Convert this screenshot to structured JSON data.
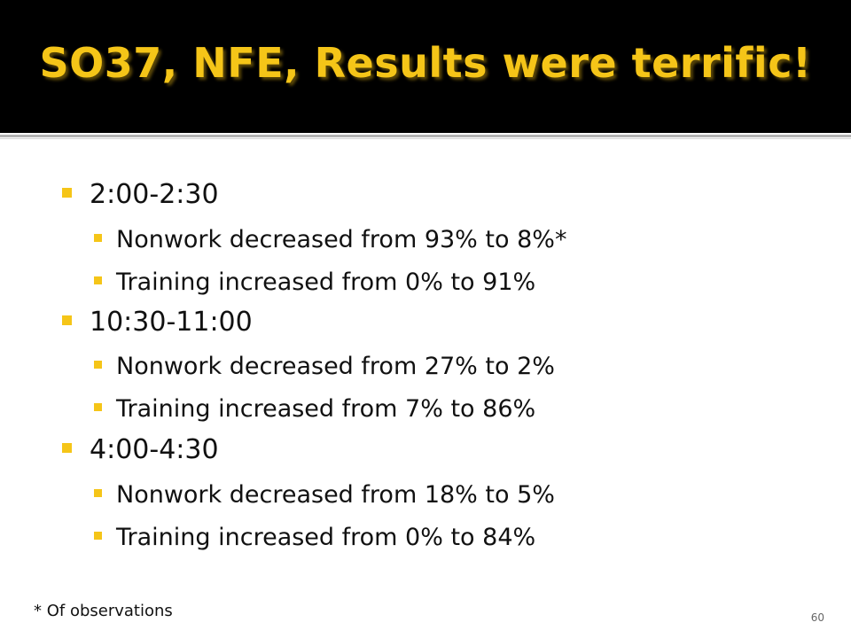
{
  "slide": {
    "title": "SO37, NFE, Results were terrific!",
    "sections": [
      {
        "heading": "2:00-2:30",
        "points": [
          "Nonwork decreased from 93% to 8%*",
          "Training increased from 0% to 91%"
        ]
      },
      {
        "heading": "10:30-11:00",
        "points": [
          "Nonwork decreased from 27% to 2%",
          "Training increased from 7% to 86%"
        ]
      },
      {
        "heading": "4:00-4:30",
        "points": [
          "Nonwork decreased from 18% to 5%",
          "Training increased from 0% to 84%"
        ]
      }
    ],
    "footnote": "* Of observations",
    "slide_number": "60"
  },
  "theme": {
    "title_background": "#000000",
    "accent": "#f5c518",
    "text": "#111111"
  }
}
